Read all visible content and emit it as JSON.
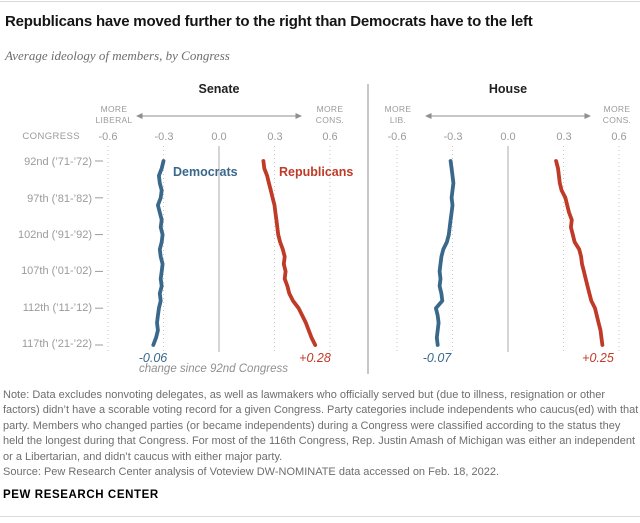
{
  "chart_data": {
    "type": "line",
    "title": "Republicans have moved further to the right than Democrats have to the left",
    "subtitle": "Average ideology of members, by Congress",
    "congress_axis_label": "CONGRESS",
    "congress_ticks": [
      "92nd (’71-’72)",
      "97th (’81-’82)",
      "102nd (’91-’92)",
      "107th (’01-’02)",
      "112th (’11-’12)",
      "117th (’21-’22)"
    ],
    "x": [
      92,
      93,
      94,
      95,
      96,
      97,
      98,
      99,
      100,
      101,
      102,
      103,
      104,
      105,
      106,
      107,
      108,
      109,
      110,
      111,
      112,
      113,
      114,
      115,
      116,
      117
    ],
    "x_ticks": [
      "-0.6",
      "-0.3",
      "0.0",
      "0.3",
      "0.6"
    ],
    "x_tick_values": [
      -0.6,
      -0.3,
      0,
      0.3,
      0.6
    ],
    "xlim": [
      -0.6,
      0.6
    ],
    "grid": "dotted vertical at ticks, solid at zero",
    "legend_position": "inline labels at top of lines (Senate panel only)",
    "change_caption": "change since 92nd Congress",
    "panels": [
      {
        "title": "Senate",
        "more_liberal_label": [
          "MORE",
          "LIBERAL"
        ],
        "more_cons_label": [
          "MORE",
          "CONS."
        ],
        "series": [
          {
            "name": "Democrats",
            "color": "#3a688b",
            "change_label": "-0.06",
            "values": [
              -0.3,
              -0.31,
              -0.325,
              -0.32,
              -0.31,
              -0.315,
              -0.33,
              -0.32,
              -0.31,
              -0.315,
              -0.305,
              -0.31,
              -0.32,
              -0.315,
              -0.305,
              -0.31,
              -0.315,
              -0.31,
              -0.32,
              -0.315,
              -0.325,
              -0.33,
              -0.335,
              -0.33,
              -0.34,
              -0.355
            ]
          },
          {
            "name": "Republicans",
            "color": "#bf3a27",
            "change_label": "+0.28",
            "values": [
              0.24,
              0.245,
              0.26,
              0.27,
              0.28,
              0.29,
              0.3,
              0.305,
              0.31,
              0.315,
              0.32,
              0.33,
              0.345,
              0.355,
              0.35,
              0.36,
              0.355,
              0.37,
              0.38,
              0.4,
              0.43,
              0.45,
              0.47,
              0.485,
              0.5,
              0.52
            ]
          }
        ]
      },
      {
        "title": "House",
        "more_liberal_label": [
          "MORE",
          "LIB."
        ],
        "more_cons_label": [
          "MORE",
          "CONS."
        ],
        "series": [
          {
            "name": "Democrats",
            "color": "#3a688b",
            "change_label": "-0.07",
            "values": [
              -0.31,
              -0.305,
              -0.3,
              -0.295,
              -0.3,
              -0.305,
              -0.3,
              -0.305,
              -0.31,
              -0.315,
              -0.32,
              -0.33,
              -0.35,
              -0.36,
              -0.365,
              -0.37,
              -0.365,
              -0.37,
              -0.36,
              -0.355,
              -0.39,
              -0.38,
              -0.375,
              -0.38,
              -0.385,
              -0.38
            ]
          },
          {
            "name": "Republicans",
            "color": "#bf3a27",
            "change_label": "+0.25",
            "values": [
              0.26,
              0.27,
              0.275,
              0.28,
              0.29,
              0.31,
              0.32,
              0.33,
              0.345,
              0.34,
              0.35,
              0.36,
              0.385,
              0.395,
              0.4,
              0.41,
              0.42,
              0.43,
              0.44,
              0.45,
              0.47,
              0.48,
              0.49,
              0.5,
              0.505,
              0.51
            ]
          }
        ]
      }
    ]
  },
  "colors": {
    "democrat": "#3a688b",
    "republican": "#bf3a27",
    "axis_text": "#9b9b9b",
    "gridline": "#c9c9c9",
    "zero_line": "#ababab"
  },
  "footer": {
    "note": "Note: Data excludes nonvoting delegates, as well as lawmakers who officially served but (due to illness, resignation or other factors) didn’t have a scorable voting record for a given Congress. Party categories include independents who caucus(ed) with that party. Members who changed parties (or became independents) during a Congress were classified according to the status they held the longest during that Congress. For most of the 116th Congress, Rep. Justin Amash of Michigan was either an independent or a Libertarian, and didn’t caucus with either major party.",
    "source": "Source: Pew Research Center analysis of Voteview DW-NOMINATE data accessed on Feb. 18, 2022.",
    "brand": "PEW RESEARCH CENTER"
  }
}
